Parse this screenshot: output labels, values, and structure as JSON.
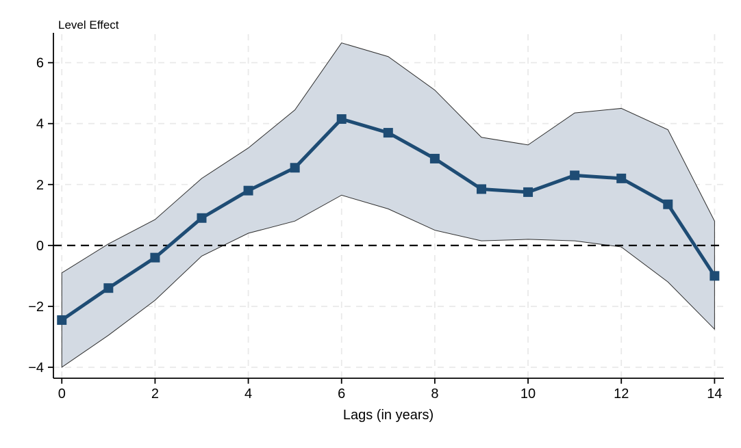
{
  "chart_data": {
    "type": "line",
    "title": "Level Effect",
    "xlabel": "Lags (in years)",
    "ylabel": "",
    "x": [
      0,
      1,
      2,
      3,
      4,
      5,
      6,
      7,
      8,
      9,
      10,
      11,
      12,
      13,
      14
    ],
    "series": [
      {
        "name": "Level Effect",
        "role": "point-estimate",
        "marker": "square",
        "values": [
          -2.45,
          -1.4,
          -0.4,
          0.9,
          1.8,
          2.55,
          4.15,
          3.7,
          2.85,
          1.85,
          1.75,
          2.3,
          2.2,
          1.35,
          -1.0
        ]
      },
      {
        "name": "Confidence band upper",
        "role": "ci-upper",
        "values": [
          -0.9,
          0.05,
          0.85,
          2.2,
          3.2,
          4.45,
          6.65,
          6.2,
          5.1,
          3.55,
          3.3,
          4.35,
          4.5,
          3.8,
          0.8
        ]
      },
      {
        "name": "Confidence band lower",
        "role": "ci-lower",
        "values": [
          -4.0,
          -2.95,
          -1.8,
          -0.35,
          0.4,
          0.8,
          1.65,
          1.2,
          0.5,
          0.15,
          0.2,
          0.15,
          -0.05,
          -1.2,
          -2.75
        ]
      }
    ],
    "x_ticks": {
      "values": [
        0,
        2,
        4,
        6,
        8,
        10,
        12,
        14
      ],
      "labels": [
        "0",
        "2",
        "4",
        "6",
        "8",
        "10",
        "12",
        "14"
      ]
    },
    "y_ticks": {
      "values": [
        -4,
        -2,
        0,
        2,
        4,
        6
      ],
      "labels": [
        "−4",
        "−2",
        "0",
        "2",
        "4",
        "6"
      ]
    },
    "xlim": [
      -0.18,
      14.2
    ],
    "ylim": [
      -4.36,
      6.98
    ],
    "grid": true,
    "legend": "none",
    "zero_line": 0
  },
  "colors": {
    "line": "#1e4c74",
    "band_fill": "#d3dae3",
    "band_edge": "#2e2e2e",
    "zero_line": "#000000",
    "grid": "#e9e9e9",
    "axis": "#000000",
    "text": "#000000",
    "background": "#ffffff"
  }
}
